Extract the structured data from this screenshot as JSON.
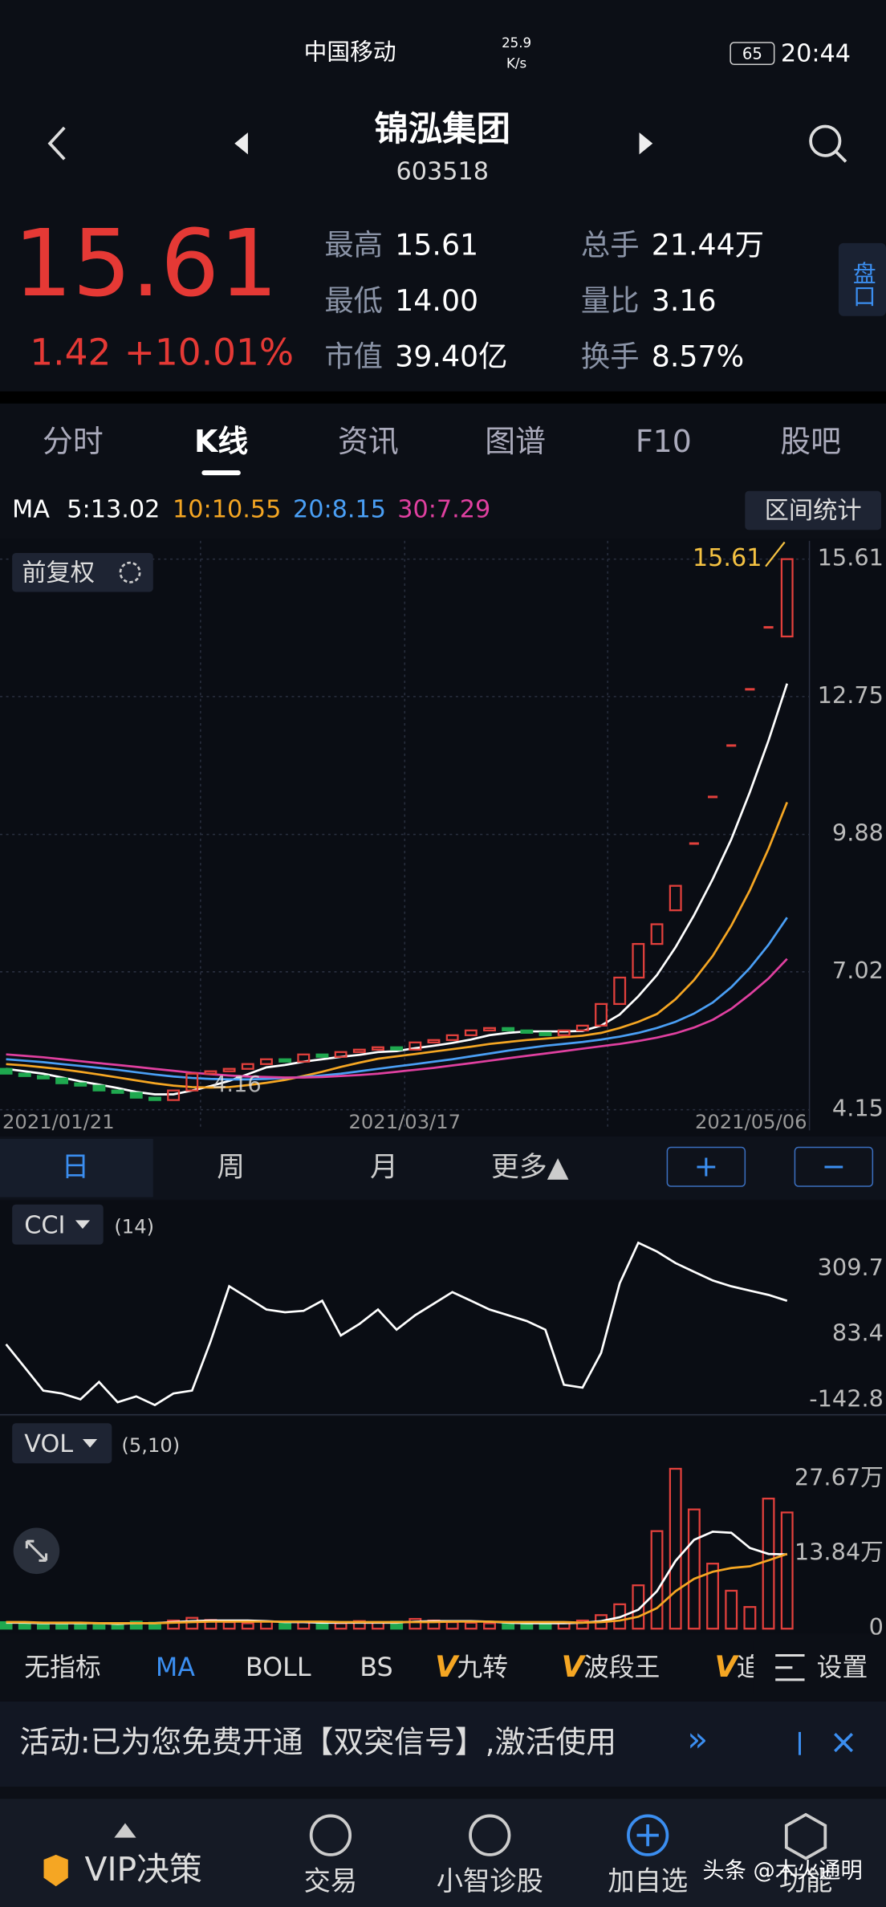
{
  "status_bar": {
    "carrier": "中国移动",
    "net_speed": "25.9",
    "net_unit": "K/s",
    "battery": "65",
    "time": "20:44"
  },
  "header": {
    "name": "锦泓集团",
    "code": "603518"
  },
  "quote": {
    "price": "15.61",
    "change": "1.42",
    "change_pct": "+10.01%",
    "stats": [
      {
        "label": "最高",
        "value": "15.61"
      },
      {
        "label": "最低",
        "value": "14.00"
      },
      {
        "label": "市值",
        "value": "39.40亿"
      },
      {
        "label": "总手",
        "value": "21.44万"
      },
      {
        "label": "量比",
        "value": "3.16"
      },
      {
        "label": "换手",
        "value": "8.57%"
      }
    ],
    "side_button": "盘口"
  },
  "tabs": [
    "分时",
    "K线",
    "资讯",
    "图谱",
    "F10",
    "股吧"
  ],
  "ma_bar": {
    "title": "MA",
    "button": "区间统计"
  },
  "period_tabs": [
    "日",
    "周",
    "月",
    "更多▲"
  ],
  "zoom_buttons": [
    "+",
    "−"
  ],
  "indicators": [
    {
      "text": "无指标"
    },
    {
      "text": "MA"
    },
    {
      "text": "BOLL"
    },
    {
      "text": "BS"
    },
    {
      "badge": "V",
      "text": "九转"
    },
    {
      "badge": "V",
      "text": "波段王"
    },
    {
      "badge": "V",
      "text": "追"
    }
  ],
  "settings": "设置",
  "banner": {
    "text": "活动:已为您免费开通【双突信号】,激活使用",
    "more": "»",
    "close": "×"
  },
  "nav": [
    "VIP决策",
    "交易",
    "小智诊股",
    "加自选",
    "功能"
  ],
  "watermark": "头条 @木火通明",
  "chart_data": [
    {
      "type": "candlestick",
      "adjust_button": "前复权",
      "ylim": [
        3.72,
        15.99
      ],
      "yticks": [
        15.61,
        12.75,
        9.88,
        7.02,
        4.15
      ],
      "date_labels": [
        "2021/01/21",
        "2021/03/17",
        "2021/05/06"
      ],
      "high_label": 15.61,
      "low_label": 4.16,
      "grid": true,
      "open": [
        5.0,
        4.9,
        4.85,
        4.8,
        4.7,
        4.65,
        4.55,
        4.5,
        4.4,
        4.35,
        4.55,
        4.9,
        4.95,
        5.0,
        5.1,
        5.2,
        5.15,
        5.3,
        5.25,
        5.35,
        5.4,
        5.45,
        5.4,
        5.55,
        5.6,
        5.7,
        5.8,
        5.85,
        5.8,
        5.75,
        5.7,
        5.8,
        5.9,
        6.35,
        6.9,
        7.6,
        8.3,
        9.69,
        10.66,
        11.73,
        12.9,
        14.19,
        14.0
      ],
      "close": [
        4.9,
        4.85,
        4.8,
        4.7,
        4.65,
        4.55,
        4.5,
        4.4,
        4.35,
        4.55,
        4.9,
        4.95,
        5.0,
        5.1,
        5.2,
        5.15,
        5.3,
        5.25,
        5.35,
        5.4,
        5.45,
        5.4,
        5.55,
        5.6,
        5.7,
        5.8,
        5.85,
        5.8,
        5.75,
        5.7,
        5.8,
        5.9,
        6.35,
        6.9,
        7.6,
        8.01,
        8.81,
        9.69,
        10.66,
        11.73,
        12.9,
        14.19,
        15.61
      ],
      "up_color": "#e2403c",
      "down_color": "#1fa84f",
      "series": [
        {
          "name": "5:13.02",
          "color": "#ffffff",
          "values": [
            5.0,
            4.95,
            4.9,
            4.82,
            4.74,
            4.67,
            4.6,
            4.52,
            4.47,
            4.47,
            4.55,
            4.64,
            4.75,
            4.89,
            5.03,
            5.08,
            5.15,
            5.2,
            5.25,
            5.29,
            5.35,
            5.37,
            5.43,
            5.48,
            5.54,
            5.61,
            5.7,
            5.75,
            5.78,
            5.78,
            5.78,
            5.79,
            5.9,
            6.13,
            6.51,
            6.95,
            7.53,
            8.2,
            8.95,
            9.78,
            10.76,
            11.83,
            13.02
          ]
        },
        {
          "name": "10:10.55",
          "color": "#f5a623",
          "values": [
            5.1,
            5.07,
            5.03,
            4.99,
            4.94,
            4.88,
            4.82,
            4.76,
            4.7,
            4.65,
            4.62,
            4.61,
            4.62,
            4.66,
            4.71,
            4.77,
            4.85,
            4.94,
            5.04,
            5.13,
            5.21,
            5.26,
            5.31,
            5.36,
            5.41,
            5.46,
            5.52,
            5.56,
            5.6,
            5.63,
            5.66,
            5.69,
            5.75,
            5.85,
            5.98,
            6.14,
            6.45,
            6.85,
            7.35,
            7.98,
            8.72,
            9.58,
            10.55
          ]
        },
        {
          "name": "20:8.15",
          "color": "#4a9ff5",
          "values": [
            5.2,
            5.17,
            5.14,
            5.1,
            5.06,
            5.02,
            4.98,
            4.93,
            4.88,
            4.84,
            4.81,
            4.79,
            4.78,
            4.78,
            4.79,
            4.81,
            4.83,
            4.86,
            4.9,
            4.95,
            5.0,
            5.05,
            5.1,
            5.15,
            5.2,
            5.26,
            5.32,
            5.38,
            5.43,
            5.48,
            5.52,
            5.56,
            5.61,
            5.67,
            5.75,
            5.85,
            5.98,
            6.15,
            6.38,
            6.7,
            7.1,
            7.58,
            8.15
          ]
        },
        {
          "name": "30:7.29",
          "color": "#e040a0",
          "values": [
            5.3,
            5.27,
            5.24,
            5.2,
            5.16,
            5.12,
            5.08,
            5.04,
            5.0,
            4.96,
            4.92,
            4.89,
            4.86,
            4.84,
            4.83,
            4.82,
            4.82,
            4.83,
            4.85,
            4.87,
            4.9,
            4.94,
            4.98,
            5.02,
            5.07,
            5.12,
            5.17,
            5.22,
            5.27,
            5.32,
            5.37,
            5.42,
            5.47,
            5.52,
            5.58,
            5.65,
            5.74,
            5.86,
            6.02,
            6.25,
            6.55,
            6.88,
            7.29
          ]
        }
      ]
    },
    {
      "type": "line",
      "name": "CCI",
      "params": "(14)",
      "ylim": [
        -185,
        528
      ],
      "yticks": [
        309.7,
        83.4,
        -142.8
      ],
      "series": [
        {
          "color": "#ffffff",
          "values": [
            50,
            -30,
            -110,
            -120,
            -140,
            -80,
            -150,
            -130,
            -160,
            -120,
            -110,
            60,
            250,
            210,
            170,
            160,
            165,
            200,
            80,
            120,
            170,
            100,
            150,
            190,
            230,
            200,
            170,
            150,
            130,
            100,
            -90,
            -100,
            20,
            260,
            400,
            370,
            330,
            300,
            270,
            250,
            235,
            220,
            200
          ]
        }
      ]
    },
    {
      "type": "volume",
      "name": "VOL",
      "params": "(5,10)",
      "ylim": [
        0,
        29.6
      ],
      "yticks": [
        {
          "value": 27.67,
          "label": "27.67万"
        },
        {
          "value": 13.84,
          "label": "13.84万"
        },
        0
      ],
      "values": [
        1.2,
        1.0,
        0.9,
        1.1,
        0.8,
        1.0,
        0.9,
        1.3,
        1.1,
        1.5,
        2.0,
        1.6,
        1.2,
        1.0,
        1.3,
        1.1,
        1.2,
        0.9,
        1.0,
        1.4,
        1.1,
        1.3,
        1.8,
        1.5,
        1.2,
        1.1,
        1.0,
        0.9,
        1.0,
        0.8,
        1.2,
        1.5,
        2.5,
        4.5,
        8.0,
        18.0,
        29.5,
        22.0,
        12.0,
        7.0,
        4.0,
        24.0,
        21.44
      ],
      "series": [
        {
          "color": "#ffffff",
          "values": [
            1.1,
            1.1,
            1.0,
            1.0,
            1.0,
            1.0,
            0.9,
            1.0,
            1.0,
            1.2,
            1.4,
            1.5,
            1.5,
            1.5,
            1.4,
            1.2,
            1.2,
            1.1,
            1.1,
            1.1,
            1.1,
            1.1,
            1.3,
            1.4,
            1.4,
            1.4,
            1.3,
            1.1,
            1.0,
            1.0,
            1.0,
            1.1,
            1.4,
            2.1,
            3.5,
            6.9,
            12.5,
            16.4,
            17.9,
            17.7,
            14.9,
            13.8,
            13.7
          ]
        },
        {
          "color": "#f5a623",
          "values": [
            1.2,
            1.2,
            1.1,
            1.1,
            1.1,
            1.0,
            1.0,
            1.0,
            1.0,
            1.1,
            1.2,
            1.3,
            1.3,
            1.3,
            1.3,
            1.3,
            1.3,
            1.3,
            1.2,
            1.2,
            1.2,
            1.2,
            1.2,
            1.2,
            1.3,
            1.3,
            1.3,
            1.2,
            1.2,
            1.2,
            1.2,
            1.1,
            1.2,
            1.5,
            2.2,
            3.8,
            6.9,
            9.2,
            10.5,
            11.2,
            11.5,
            12.6,
            13.8
          ]
        }
      ]
    }
  ]
}
